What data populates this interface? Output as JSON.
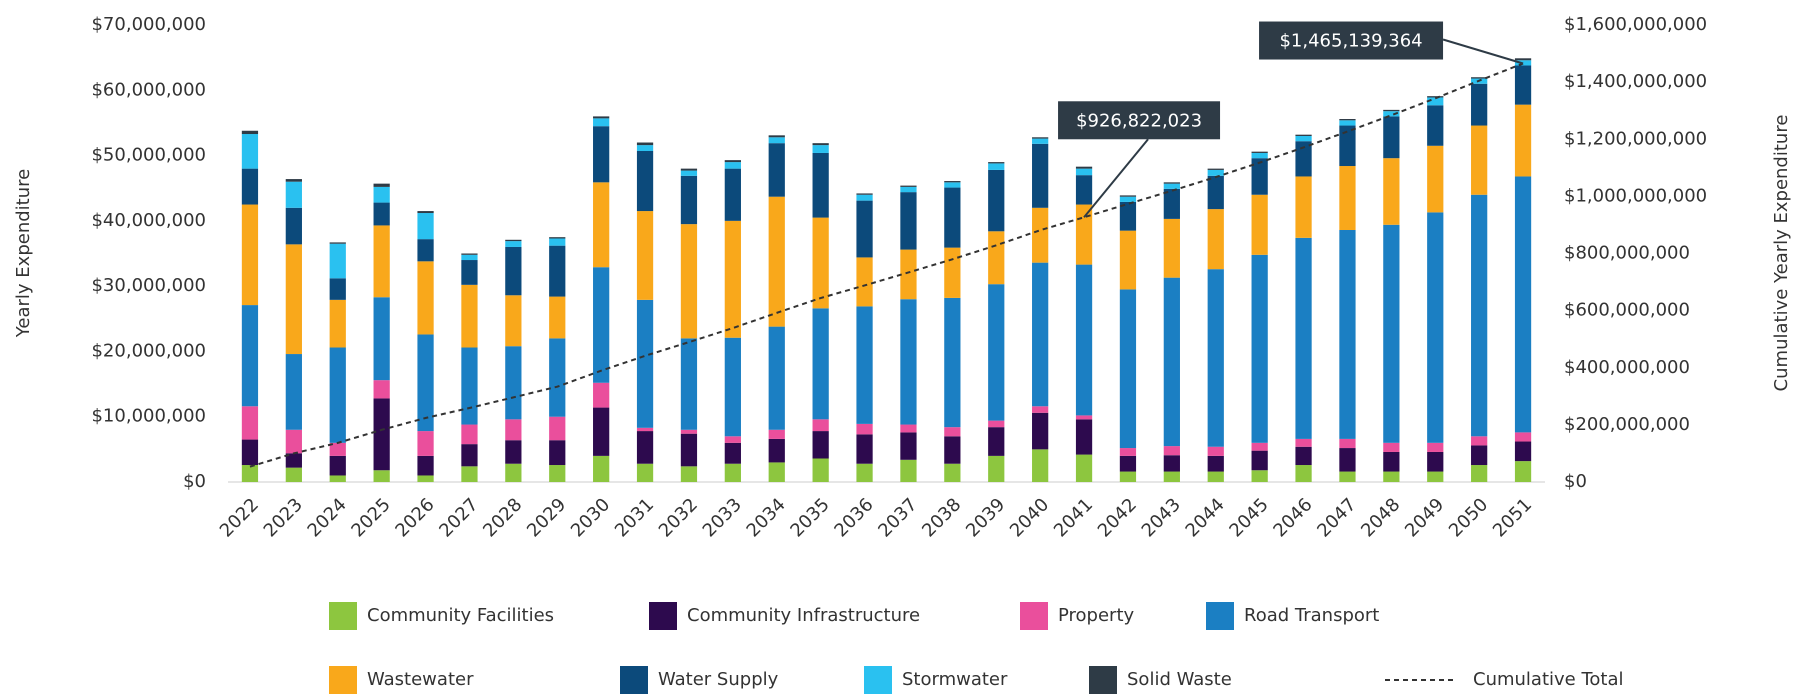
{
  "chart_data": {
    "type": "bar",
    "stacked": true,
    "y_label": "Yearly Expenditure",
    "y2_label": "Cumulative Yearly Expenditure",
    "categories": [
      "2022",
      "2023",
      "2024",
      "2025",
      "2026",
      "2027",
      "2028",
      "2029",
      "2030",
      "2031",
      "2032",
      "2033",
      "2034",
      "2035",
      "2036",
      "2037",
      "2038",
      "2039",
      "2040",
      "2041",
      "2042",
      "2043",
      "2044",
      "2045",
      "2046",
      "2047",
      "2048",
      "2049",
      "2050",
      "2051"
    ],
    "ylim": [
      0,
      70000000
    ],
    "yticks": [
      {
        "value": 0,
        "label": "$0"
      },
      {
        "value": 10000000,
        "label": "$10,000,000"
      },
      {
        "value": 20000000,
        "label": "$20,000,000"
      },
      {
        "value": 30000000,
        "label": "$30,000,000"
      },
      {
        "value": 40000000,
        "label": "$40,000,000"
      },
      {
        "value": 50000000,
        "label": "$50,000,000"
      },
      {
        "value": 60000000,
        "label": "$60,000,000"
      },
      {
        "value": 70000000,
        "label": "$70,000,000"
      }
    ],
    "y2lim": [
      0,
      1600000000
    ],
    "y2ticks": [
      {
        "value": 0,
        "label": "$0"
      },
      {
        "value": 200000000,
        "label": "$200,000,000"
      },
      {
        "value": 400000000,
        "label": "$400,000,000"
      },
      {
        "value": 600000000,
        "label": "$600,000,000"
      },
      {
        "value": 800000000,
        "label": "$800,000,000"
      },
      {
        "value": 1000000000,
        "label": "$1,000,000,000"
      },
      {
        "value": 1200000000,
        "label": "$1,200,000,000"
      },
      {
        "value": 1400000000,
        "label": "$1,400,000,000"
      },
      {
        "value": 1600000000,
        "label": "$1,600,000,000"
      }
    ],
    "series": [
      {
        "name": "Community Facilities",
        "color": "#8dc63f",
        "values": [
          2600000,
          2200000,
          1000000,
          1800000,
          1000000,
          2400000,
          2800000,
          2600000,
          4000000,
          2800000,
          2400000,
          2800000,
          3000000,
          3600000,
          2800000,
          3400000,
          2800000,
          4000000,
          5000000,
          4200000,
          1600000,
          1600000,
          1600000,
          1800000,
          2600000,
          1600000,
          1600000,
          1600000,
          2600000,
          3200000
        ]
      },
      {
        "name": "Community Infrastructure",
        "color": "#2d0a4e",
        "values": [
          3900000,
          2200000,
          3000000,
          11000000,
          3000000,
          3400000,
          3600000,
          3800000,
          7400000,
          5000000,
          5000000,
          3200000,
          3600000,
          4200000,
          4500000,
          4200000,
          4200000,
          4400000,
          5600000,
          5400000,
          2400000,
          2500000,
          2400000,
          3000000,
          2800000,
          3600000,
          3000000,
          3000000,
          3000000,
          3000000
        ]
      },
      {
        "name": "Property",
        "color": "#ea4f9c",
        "values": [
          5100000,
          3600000,
          2000000,
          2800000,
          3800000,
          3000000,
          3200000,
          3600000,
          3800000,
          500000,
          600000,
          1000000,
          1400000,
          1800000,
          1600000,
          1200000,
          1400000,
          1000000,
          1000000,
          600000,
          1200000,
          1400000,
          1400000,
          1200000,
          1200000,
          1400000,
          1400000,
          1400000,
          1400000,
          1400000
        ]
      },
      {
        "name": "Road Transport",
        "color": "#1b7fc3",
        "values": [
          15500000,
          11600000,
          14600000,
          12700000,
          14800000,
          11800000,
          11200000,
          12000000,
          17700000,
          19600000,
          14000000,
          15100000,
          15800000,
          17000000,
          18000000,
          19200000,
          19800000,
          20900000,
          22000000,
          23100000,
          24300000,
          25800000,
          27200000,
          28800000,
          30800000,
          32000000,
          33400000,
          35300000,
          37000000,
          39200000
        ]
      },
      {
        "name": "Wastewater",
        "color": "#f9a81b",
        "values": [
          15400000,
          16800000,
          7300000,
          11000000,
          11200000,
          9600000,
          7800000,
          6400000,
          13000000,
          13600000,
          17500000,
          17900000,
          19900000,
          13900000,
          7500000,
          7600000,
          7700000,
          8100000,
          8400000,
          9200000,
          9000000,
          9000000,
          9200000,
          9200000,
          9400000,
          9800000,
          10200000,
          10200000,
          10600000,
          11000000
        ]
      },
      {
        "name": "Water Supply",
        "color": "#0c4a7b",
        "values": [
          5500000,
          5600000,
          3300000,
          3500000,
          3400000,
          3800000,
          7400000,
          7800000,
          8600000,
          9200000,
          7400000,
          8000000,
          8200000,
          9900000,
          8700000,
          8800000,
          9200000,
          9400000,
          9800000,
          4500000,
          4400000,
          4600000,
          5100000,
          5600000,
          5400000,
          6200000,
          6400000,
          6200000,
          6400000,
          6000000
        ]
      },
      {
        "name": "Stormwater",
        "color": "#2ac1f0",
        "values": [
          5300000,
          4000000,
          5300000,
          2400000,
          4000000,
          800000,
          900000,
          1100000,
          1200000,
          900000,
          800000,
          1000000,
          900000,
          1200000,
          900000,
          800000,
          800000,
          1000000,
          800000,
          1000000,
          800000,
          800000,
          900000,
          800000,
          800000,
          800000,
          800000,
          1200000,
          800000,
          800000
        ]
      },
      {
        "name": "Solid Waste",
        "color": "#2e3b46",
        "values": [
          500000,
          400000,
          200000,
          500000,
          300000,
          200000,
          200000,
          200000,
          300000,
          400000,
          300000,
          300000,
          300000,
          300000,
          200000,
          200000,
          200000,
          200000,
          200000,
          300000,
          200000,
          200000,
          200000,
          200000,
          200000,
          200000,
          200000,
          200000,
          200000,
          300000
        ]
      },
      {
        "name": "Cumulative Total",
        "type": "line",
        "axis": "y2",
        "color": "#333333",
        "dash": true,
        "values": [
          53800000,
          100200000,
          136900000,
          182600000,
          224100000,
          259100000,
          296200000,
          333700000,
          389700000,
          441700000,
          489700000,
          539000000,
          592100000,
          644000000,
          688200000,
          733600000,
          779700000,
          828700000,
          881500000,
          926822023,
          973700000,
          1019600000,
          1067600000,
          1118200000,
          1171400000,
          1227000000,
          1284000000,
          1343100000,
          1405100000,
          1465139364
        ],
        "value_labels": [
          null,
          null,
          null,
          null,
          null,
          null,
          null,
          null,
          null,
          null,
          null,
          null,
          null,
          null,
          null,
          null,
          null,
          null,
          null,
          "$926,822,023",
          null,
          null,
          null,
          null,
          null,
          null,
          null,
          null,
          null,
          "$1,465,139,364"
        ]
      }
    ]
  }
}
